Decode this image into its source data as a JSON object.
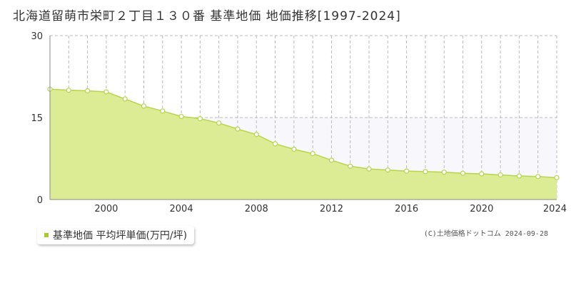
{
  "title": "北海道留萌市栄町２丁目１３０番 基準地価 地価推移[1997-2024]",
  "copyright": "(C)土地価格ドットコム 2024-09-28",
  "colors": {
    "fill": "#dcec94",
    "line": "#b7d54a",
    "marker_edge": "#b7d54a",
    "marker_fill": "#ffffff",
    "grid": "#bbbbbb",
    "legend_swatch": "#a5cc2a"
  },
  "chart_data": {
    "type": "area",
    "title": "北海道留萌市栄町２丁目１３０番 基準地価 地価推移[1997-2024]",
    "xlim": [
      1997,
      2024
    ],
    "ylim": [
      0,
      30
    ],
    "y_ticks": [
      0,
      15,
      30
    ],
    "x_ticks": [
      2000,
      2004,
      2008,
      2012,
      2016,
      2020,
      2024
    ],
    "grid": true,
    "legend_position": "bottom-left",
    "series": [
      {
        "name": "基準地価 平均坪単価(万円/坪)",
        "x": [
          1997,
          1998,
          1999,
          2000,
          2001,
          2002,
          2003,
          2004,
          2005,
          2006,
          2007,
          2008,
          2009,
          2010,
          2011,
          2012,
          2013,
          2014,
          2015,
          2016,
          2017,
          2018,
          2019,
          2020,
          2021,
          2022,
          2023,
          2024
        ],
        "y": [
          20.2,
          20.0,
          19.9,
          19.7,
          18.4,
          17.1,
          16.2,
          15.2,
          14.8,
          14.0,
          12.9,
          11.9,
          10.2,
          9.2,
          8.4,
          7.2,
          6.1,
          5.6,
          5.4,
          5.2,
          5.1,
          5.0,
          4.8,
          4.7,
          4.5,
          4.3,
          4.2,
          4.0
        ]
      }
    ]
  }
}
